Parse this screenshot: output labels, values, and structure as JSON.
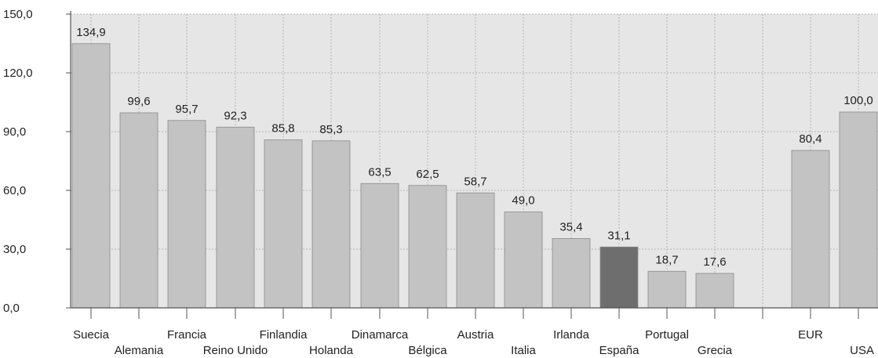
{
  "chart_data": {
    "type": "bar",
    "categories": [
      "Suecia",
      "Alemania",
      "Francia",
      "Reino Unido",
      "Finlandia",
      "Holanda",
      "Dinamarca",
      "Bélgica",
      "Austria",
      "Italia",
      "Irlanda",
      "España",
      "Portugal",
      "Grecia",
      "EUR",
      "USA"
    ],
    "values": [
      134.9,
      99.6,
      95.7,
      92.3,
      85.8,
      85.3,
      63.5,
      62.5,
      58.7,
      49.0,
      35.4,
      31.1,
      18.7,
      17.6,
      80.4,
      100.0
    ],
    "value_labels": [
      "134,9",
      "99,6",
      "95,7",
      "92,3",
      "85,8",
      "85,3",
      "63,5",
      "62,5",
      "58,7",
      "49,0",
      "35,4",
      "31,1",
      "18,7",
      "17,6",
      "80,4",
      "100,0"
    ],
    "highlight": "España",
    "ylim": [
      0,
      150
    ],
    "yticks": [
      0,
      30,
      60,
      90,
      120,
      150
    ],
    "ytick_labels": [
      "0,0",
      "30,0",
      "60,0",
      "90,0",
      "120,0",
      "150,0"
    ],
    "grid": true,
    "title": "",
    "xlabel": "",
    "ylabel": "",
    "colors": {
      "bar": "#c3c3c3",
      "highlight": "#6e6e6e",
      "plot_background": "#e6e6e6"
    }
  }
}
